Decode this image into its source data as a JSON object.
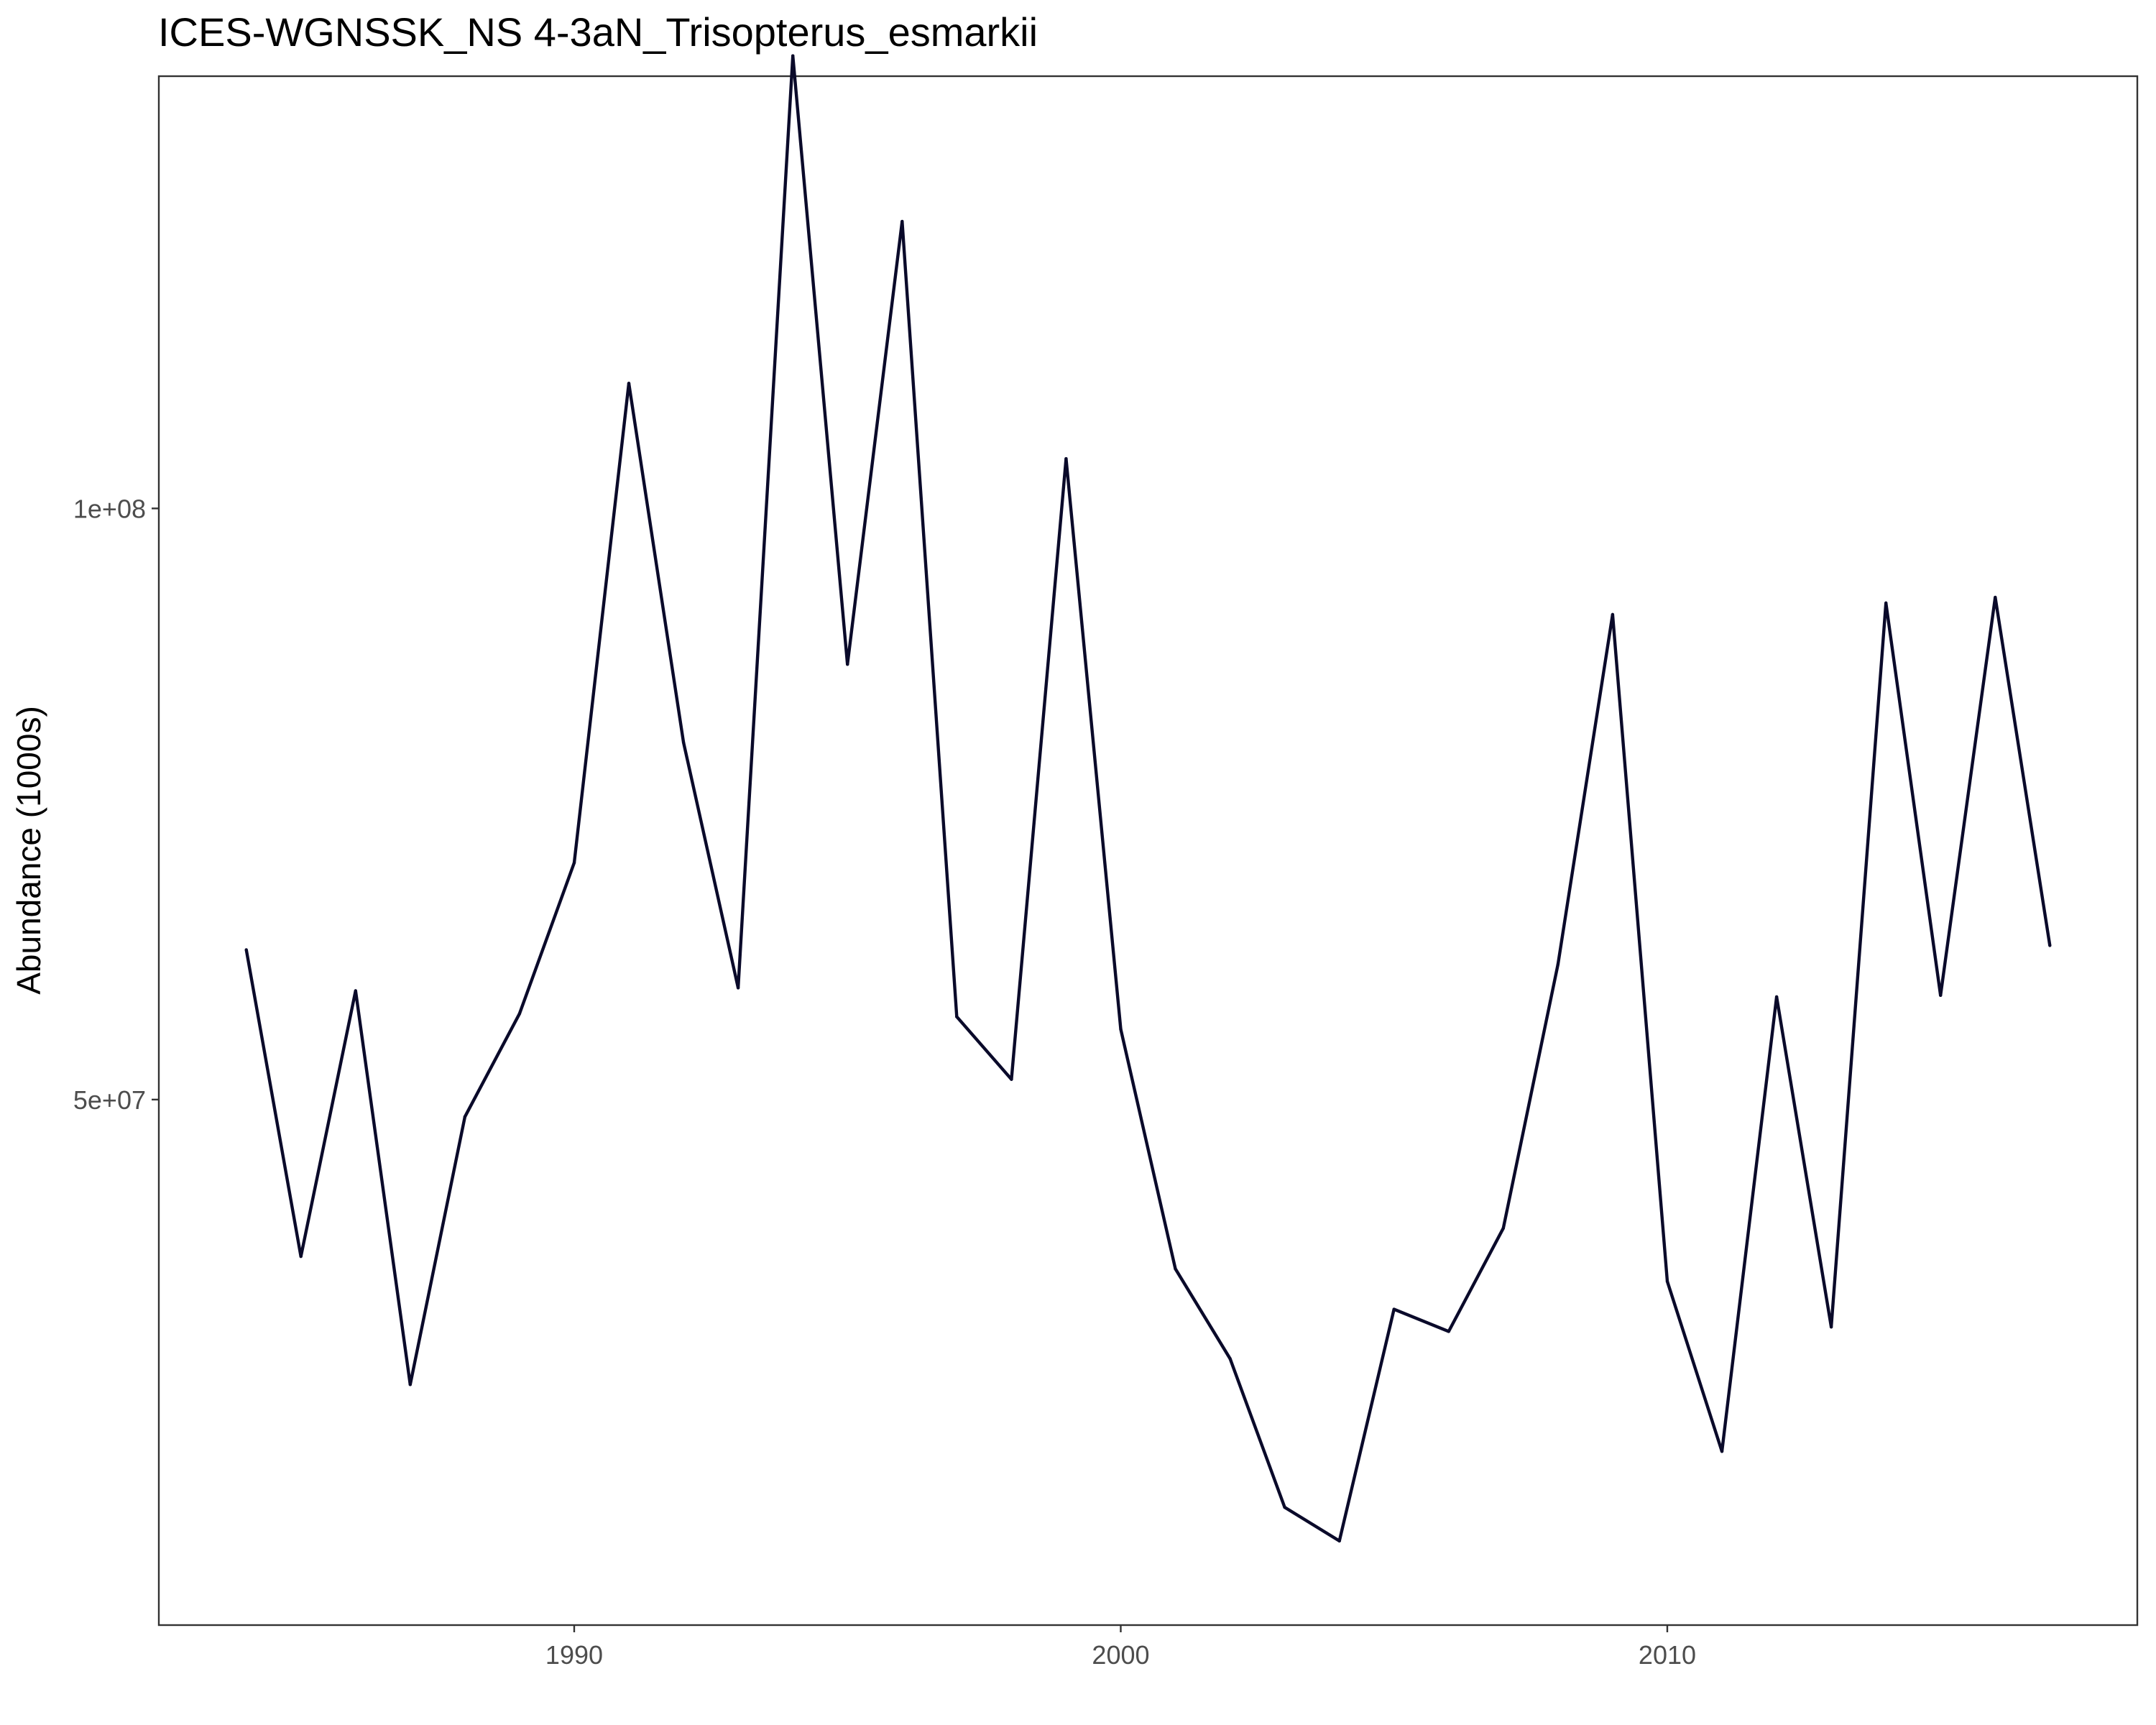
{
  "chart_data": {
    "type": "line",
    "title": "ICES-WGNSSK_NS 4-3aN_Trisopterus_esmarkii",
    "xlabel": "",
    "ylabel": "Abundance (1000s)",
    "xlim": [
      1982.4,
      2018.6
    ],
    "ylim": [
      27000000,
      166000000
    ],
    "y_scale": "log",
    "grid": false,
    "legend": "none",
    "x_ticks": [
      1990,
      2000,
      2010
    ],
    "x_tick_labels": [
      "1990",
      "2000",
      "2010"
    ],
    "y_ticks": [
      50000000,
      100000000
    ],
    "y_tick_labels": [
      "5e+07",
      "1e+08"
    ],
    "series": [
      {
        "color": "#0a0a2a",
        "x": [
          1984,
          1985,
          1986,
          1987,
          1988,
          1989,
          1990,
          1991,
          1992,
          1993,
          1994,
          1995,
          1996,
          1997,
          1998,
          1999,
          2000,
          2001,
          2002,
          2003,
          2004,
          2005,
          2006,
          2007,
          2008,
          2009,
          2010,
          2011,
          2012,
          2013,
          2014,
          2015,
          2016,
          2017
        ],
        "values": [
          59600000,
          41600000,
          56800000,
          35800000,
          49000000,
          55300000,
          66000000,
          115800000,
          76000000,
          57000000,
          170000000,
          83300000,
          140000000,
          55100000,
          51200000,
          106000000,
          54300000,
          41000000,
          36900000,
          31000000,
          29800000,
          39100000,
          38100000,
          43000000,
          58600000,
          88300000,
          40400000,
          33100000,
          56400000,
          38300000,
          89500000,
          56500000,
          90100000,
          59900000
        ]
      }
    ]
  }
}
